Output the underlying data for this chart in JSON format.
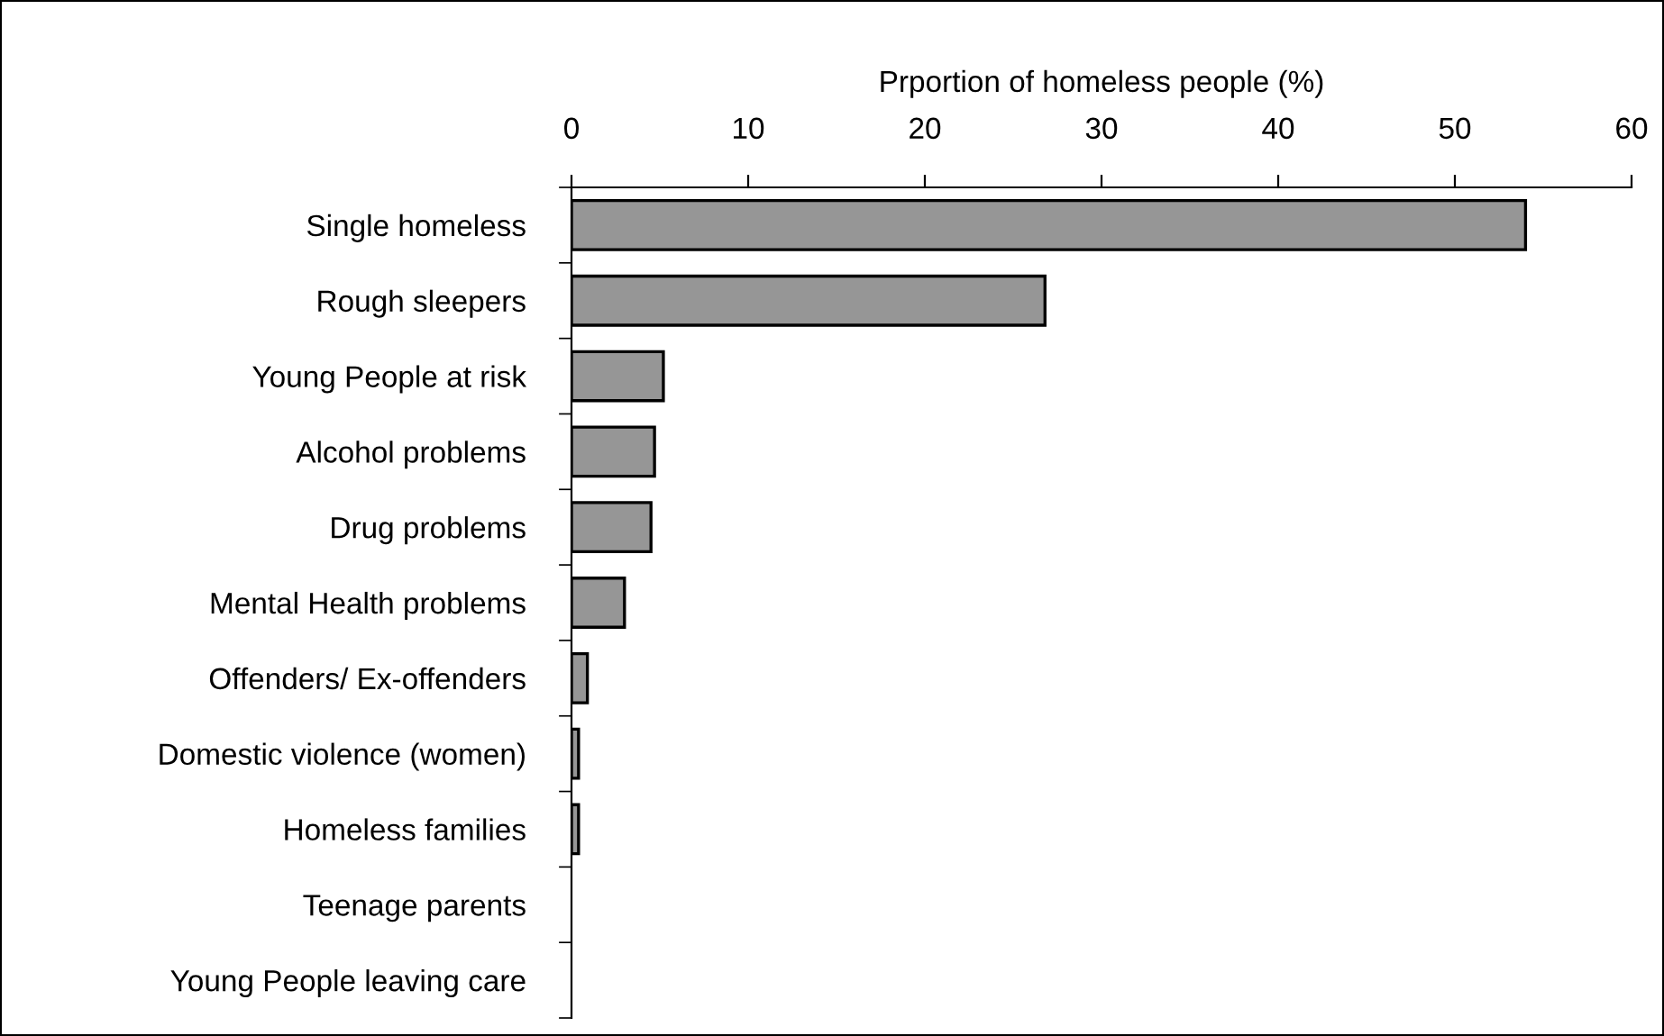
{
  "chart_data": {
    "type": "bar",
    "orientation": "horizontal",
    "xlabel": "Prportion of homeless people (%)",
    "categories": [
      "Single homeless",
      "Rough sleepers",
      "Young People at risk",
      "Alcohol problems",
      "Drug problems",
      "Mental Health problems",
      "Offenders/ Ex-offenders",
      "Domestic violence (women)",
      "Homeless families",
      "Teenage parents",
      "Young People leaving care"
    ],
    "values": [
      54.0,
      26.8,
      5.2,
      4.7,
      4.5,
      3.0,
      0.9,
      0.4,
      0.4,
      0,
      0
    ],
    "color": "#969696",
    "xlim": [
      0,
      60
    ],
    "xticks": [
      0,
      10,
      20,
      30,
      40,
      50,
      60
    ],
    "grid": false,
    "legend": false
  }
}
